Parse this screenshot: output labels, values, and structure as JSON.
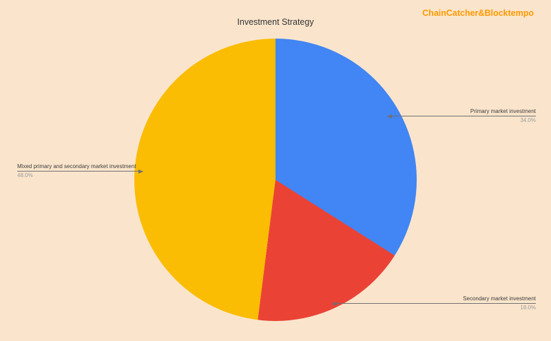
{
  "header": {
    "brand": "ChainCatcher&Blocktempo",
    "brand_color": "#FF9900"
  },
  "chart_data": {
    "type": "pie",
    "title": "Investment Strategy",
    "background_color": "#FAE5CC",
    "direction": "clockwise",
    "start_angle_deg": 0,
    "legend_position": "labeled-callouts",
    "callout_line_color": "#6f6f6f",
    "label_color": "#3c3c3c",
    "pct_label_color": "#9b9b9b",
    "slices": [
      {
        "label": "Primary market investment",
        "value": 34.0,
        "pct_label": "34.0%",
        "color": "#4285F4"
      },
      {
        "label": "Secondary market investment",
        "value": 18.0,
        "pct_label": "18.0%",
        "color": "#EA4335"
      },
      {
        "label": "Mixed primary and secondary market investment",
        "value": 48.0,
        "pct_label": "48.0%",
        "color": "#FBBC04"
      }
    ]
  }
}
